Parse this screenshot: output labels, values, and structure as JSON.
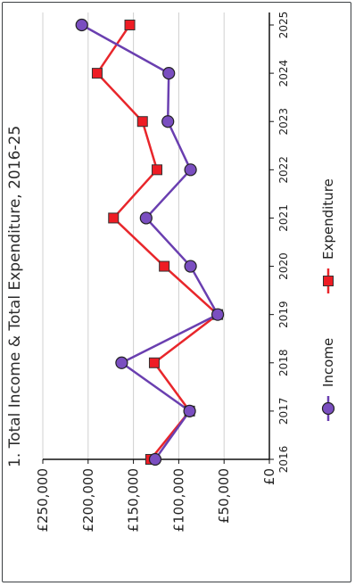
{
  "chart_data": {
    "type": "line",
    "title": "1. Total Income & Total Expenditure, 2016-25",
    "categories": [
      "2016",
      "2017",
      "2018",
      "2019",
      "2020",
      "2021",
      "2022",
      "2023",
      "2024",
      "2025"
    ],
    "ylim": [
      0,
      250000
    ],
    "yticks": [
      {
        "value": 0,
        "label": "£0"
      },
      {
        "value": 50000,
        "label": "£50,000"
      },
      {
        "value": 100000,
        "label": "£100,000"
      },
      {
        "value": 150000,
        "label": "£150,000"
      },
      {
        "value": 200000,
        "label": "£200,000"
      },
      {
        "value": 250000,
        "label": "£250,000"
      }
    ],
    "series": [
      {
        "name": "Income",
        "marker": "circle",
        "color": "#6a3fb0",
        "marker_fill": "#7a4ec0",
        "values": [
          126000,
          88000,
          163000,
          57000,
          87000,
          136000,
          87000,
          112000,
          111000,
          207000
        ]
      },
      {
        "name": "Expenditure",
        "marker": "square",
        "color": "#e8262b",
        "marker_fill": "#ee1c24",
        "values": [
          131000,
          88000,
          127000,
          57000,
          116000,
          172000,
          124000,
          140000,
          190000,
          154000
        ]
      }
    ],
    "grid": true,
    "legend_position": "bottom"
  }
}
